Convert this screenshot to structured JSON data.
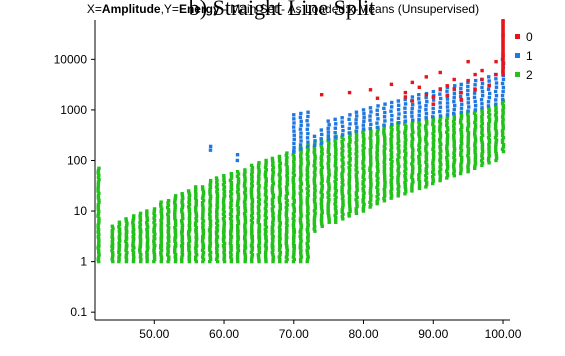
{
  "caption": "b) Straight Line Split",
  "colors": {
    "0": "#e8141b",
    "1": "#1f78e0",
    "2": "#22c21a",
    "axis": "#000000",
    "background": "#ffffff"
  },
  "chart_data": {
    "type": "scatter",
    "title_parts": [
      {
        "text": "X=",
        "bold": false
      },
      {
        "text": "Amplitude",
        "bold": true
      },
      {
        "text": ",Y=",
        "bold": false
      },
      {
        "text": "Energy",
        "bold": true
      },
      {
        "text": " - Main Set - As Loaded:k-Means (Unsupervised)",
        "bold": false
      }
    ],
    "x_axis": {
      "ticks": [
        "50.00",
        "60.00",
        "70.00",
        "80.00",
        "90.00",
        "100.00"
      ],
      "range": [
        41.5,
        101
      ]
    },
    "y_axis": {
      "scale": "log",
      "ticks": [
        "0.1",
        "1",
        "10",
        "100",
        "1000",
        "10000"
      ],
      "range": [
        0.07,
        60000
      ]
    },
    "legend": {
      "position": "right",
      "entries": [
        "0",
        "1",
        "2"
      ]
    },
    "series": [
      {
        "name": "2",
        "color": "#22c21a",
        "x": [
          42,
          44,
          45,
          46,
          47,
          48,
          49,
          50,
          51,
          52,
          53,
          54,
          55,
          56,
          57,
          58,
          59,
          60,
          61,
          62,
          63,
          64,
          65,
          66,
          67,
          68,
          69,
          70,
          71,
          72,
          73,
          74,
          75,
          76,
          77,
          78,
          79,
          80,
          81,
          82,
          83,
          84,
          85,
          86,
          87,
          88,
          89,
          90,
          91,
          92,
          93,
          94,
          95,
          96,
          97,
          98,
          99,
          100
        ],
        "ymin": [
          1,
          1,
          1,
          1,
          1,
          1,
          1,
          1,
          1,
          1,
          1,
          1,
          1,
          1,
          1,
          1,
          1,
          1,
          1,
          1,
          1,
          1,
          1,
          1,
          1,
          1,
          1,
          1,
          1,
          1,
          4,
          5,
          6,
          6,
          7,
          8,
          9,
          10,
          12,
          14,
          16,
          18,
          20,
          22,
          25,
          28,
          30,
          35,
          40,
          45,
          50,
          55,
          60,
          70,
          80,
          90,
          100,
          150
        ],
        "ymax": [
          70,
          5,
          6,
          7,
          8,
          9,
          10,
          11,
          15,
          16,
          20,
          22,
          25,
          30,
          30,
          40,
          45,
          50,
          55,
          60,
          65,
          80,
          90,
          100,
          110,
          120,
          140,
          160,
          180,
          200,
          220,
          250,
          270,
          300,
          320,
          350,
          380,
          400,
          420,
          450,
          480,
          500,
          550,
          580,
          600,
          620,
          650,
          700,
          720,
          750,
          800,
          850,
          900,
          950,
          1000,
          1100,
          1200,
          1500
        ]
      },
      {
        "name": "1",
        "color": "#1f78e0",
        "x": [
          58,
          62,
          70,
          71,
          72,
          73,
          74,
          75,
          76,
          77,
          78,
          79,
          80,
          81,
          82,
          83,
          84,
          85,
          86,
          87,
          88,
          89,
          90,
          91,
          92,
          93,
          94,
          95,
          96,
          97,
          98,
          99,
          100
        ],
        "ymin": [
          160,
          100,
          150,
          170,
          190,
          200,
          220,
          260,
          290,
          320,
          350,
          380,
          420,
          430,
          450,
          500,
          520,
          560,
          600,
          630,
          650,
          700,
          730,
          760,
          800,
          850,
          900,
          950,
          1000,
          1100,
          1200,
          1300,
          1600
        ],
        "ymax": [
          190,
          130,
          800,
          850,
          900,
          300,
          400,
          600,
          650,
          700,
          800,
          900,
          1000,
          1100,
          1200,
          1300,
          1400,
          1500,
          1600,
          1800,
          2000,
          2100,
          2300,
          2500,
          2800,
          3000,
          3200,
          3500,
          3800,
          4000,
          4500,
          5000,
          10000
        ]
      },
      {
        "name": "0",
        "color": "#e8141b",
        "points": [
          [
            74,
            2000
          ],
          [
            78,
            2200
          ],
          [
            81,
            2500
          ],
          [
            82,
            1700
          ],
          [
            84,
            3200
          ],
          [
            86,
            2200
          ],
          [
            86,
            1800
          ],
          [
            87,
            3500
          ],
          [
            87,
            1500
          ],
          [
            88,
            2800
          ],
          [
            89,
            4500
          ],
          [
            89,
            2000
          ],
          [
            90,
            1800
          ],
          [
            90,
            1300
          ],
          [
            91,
            5500
          ],
          [
            91,
            2600
          ],
          [
            92,
            3000
          ],
          [
            92,
            1900
          ],
          [
            93,
            4000
          ],
          [
            93,
            2600
          ],
          [
            94,
            2200
          ],
          [
            94,
            1600
          ],
          [
            95,
            9000
          ],
          [
            95,
            3800
          ],
          [
            96,
            5000
          ],
          [
            96,
            2500
          ],
          [
            97,
            6000
          ],
          [
            97,
            4000
          ],
          [
            98,
            3000
          ],
          [
            99,
            9000
          ],
          [
            99,
            5000
          ],
          [
            100,
            12000
          ],
          [
            100,
            30000
          ],
          [
            100,
            58000
          ]
        ]
      }
    ]
  }
}
